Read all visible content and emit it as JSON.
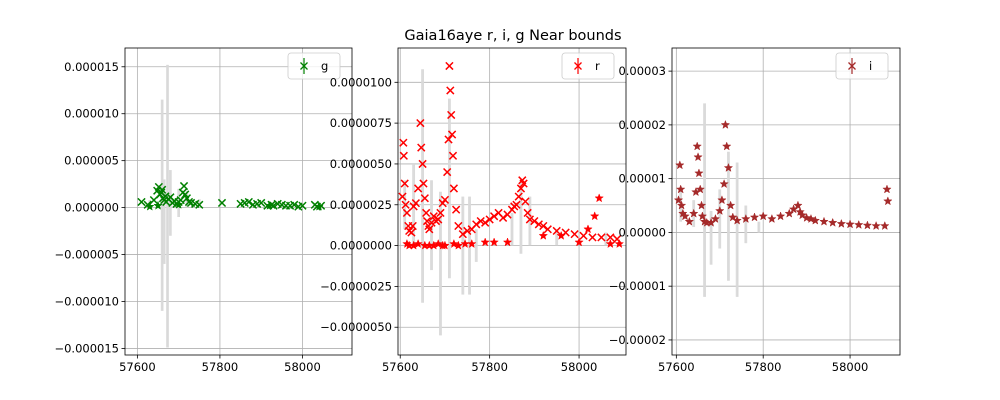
{
  "title": "Gaia16aye  r, i, g Near bounds",
  "chart_data": [
    {
      "type": "scatter",
      "band": "g",
      "legend": "g",
      "color": "#008000",
      "xlim": [
        57570,
        58120
      ],
      "ylim": [
        -1.57e-05,
        1.7e-05
      ],
      "xticks": [
        57600,
        57800,
        58000
      ],
      "xtick_labels": [
        "57600",
        "57800",
        "58000"
      ],
      "yticks": [
        -1.5e-05,
        -1e-05,
        -5e-06,
        0,
        5e-06,
        1e-05,
        1.5e-05
      ],
      "ytick_labels": [
        "−0.000015",
        "−0.000010",
        "−0.000005",
        "0.000000",
        "0.000005",
        "0.000010",
        "0.000015"
      ],
      "grid": true,
      "legend_loc": "upper right",
      "band_range": [
        [
          57630,
          4e-07,
          8e-07
        ],
        [
          57660,
          -1.1e-05,
          1.15e-05
        ],
        [
          57665,
          -6e-06,
          3e-06
        ],
        [
          57673,
          -1.49e-05,
          1.52e-05
        ],
        [
          57680,
          -3e-06,
          4e-06
        ],
        [
          57700,
          -1e-06,
          2e-06
        ],
        [
          57720,
          0,
          1.8e-06
        ],
        [
          57750,
          1e-07,
          9e-07
        ]
      ],
      "series": [
        {
          "marker": "x",
          "x": [
            57610,
            57625,
            57640,
            57648,
            57652,
            57655,
            57658,
            57660,
            57662,
            57665,
            57668,
            57670,
            57675,
            57680,
            57685,
            57690,
            57695,
            57700,
            57705,
            57710,
            57713,
            57716,
            57720,
            57725,
            57730,
            57740,
            57750,
            57805,
            57850,
            57860,
            57870,
            57880,
            57890,
            57900,
            57915,
            57925,
            57930,
            57940,
            57950,
            57960,
            57970,
            57980,
            57990,
            58000,
            58030,
            58035,
            58045
          ],
          "y": [
            6e-07,
            3e-07,
            8e-07,
            1.8e-06,
            2.2e-06,
            1.4e-06,
            1.6e-06,
            1.9e-06,
            1e-06,
            8e-07,
            1.2e-06,
            6e-07,
            9e-07,
            1.1e-06,
            5e-07,
            7e-07,
            4e-07,
            6e-07,
            8e-07,
            1.6e-06,
            2.3e-06,
            1.4e-06,
            1e-06,
            6e-07,
            5e-07,
            4e-07,
            3e-07,
            5e-07,
            4e-07,
            5e-07,
            6e-07,
            3e-07,
            4e-07,
            5e-07,
            2e-07,
            3e-07,
            2e-07,
            4e-07,
            3e-07,
            2e-07,
            2e-07,
            3e-07,
            1e-07,
            2e-07,
            3e-07,
            1e-07,
            2e-07
          ]
        },
        {
          "marker": "*",
          "x": [
            57630,
            57650,
            57700,
            57920,
            58040
          ],
          "y": [
            1e-07,
            2e-07,
            3e-07,
            2e-07,
            1e-07
          ]
        }
      ]
    },
    {
      "type": "scatter",
      "band": "r",
      "legend": "r",
      "color": "#ff0000",
      "xlim": [
        57595,
        58105
      ],
      "ylim": [
        -6.7e-06,
        1.21e-05
      ],
      "xticks": [
        57600,
        57800,
        58000
      ],
      "xtick_labels": [
        "57600",
        "57800",
        "58000"
      ],
      "yticks": [
        -5e-06,
        -2.5e-06,
        0,
        2.5e-06,
        5e-06,
        7.5e-06,
        1e-05
      ],
      "ytick_labels": [
        "−0.0000050",
        "−0.0000025",
        "0.0000000",
        "0.0000025",
        "0.0000050",
        "0.0000075",
        "0.0000100"
      ],
      "grid": true,
      "legend_loc": "upper right",
      "band_range": [
        [
          57610,
          1e-06,
          4e-06
        ],
        [
          57630,
          0,
          5e-06
        ],
        [
          57650,
          -3.5e-06,
          1.08e-05
        ],
        [
          57670,
          -1.5e-06,
          4e-06
        ],
        [
          57690,
          -5.5e-06,
          3.3e-06
        ],
        [
          57710,
          -2e-06,
          9e-06
        ],
        [
          57740,
          -3e-06,
          3e-06
        ],
        [
          57755,
          -3e-06,
          3e-06
        ],
        [
          57770,
          -1e-06,
          1e-06
        ],
        [
          57850,
          0,
          2e-06
        ],
        [
          57870,
          -5e-07,
          4e-06
        ],
        [
          57890,
          0,
          3e-06
        ],
        [
          57950,
          0,
          1e-06
        ],
        [
          58060,
          0,
          8e-07
        ]
      ],
      "series": [
        {
          "marker": "x",
          "x": [
            57605,
            57607,
            57608,
            57610,
            57612,
            57615,
            57618,
            57620,
            57625,
            57628,
            57630,
            57635,
            57640,
            57645,
            57647,
            57650,
            57652,
            57655,
            57658,
            57660,
            57663,
            57665,
            57670,
            57675,
            57680,
            57685,
            57690,
            57695,
            57700,
            57705,
            57708,
            57710,
            57712,
            57714,
            57716,
            57718,
            57720,
            57725,
            57730,
            57740,
            57750,
            57760,
            57770,
            57780,
            57790,
            57800,
            57810,
            57820,
            57830,
            57840,
            57850,
            57855,
            57860,
            57865,
            57870,
            57873,
            57876,
            57880,
            57885,
            57890,
            57900,
            57910,
            57920,
            57930,
            57950,
            57970,
            57990,
            58010,
            58030,
            58050,
            58070,
            58085
          ],
          "y": [
            3e-06,
            6.3e-06,
            5.5e-06,
            3.8e-06,
            2.5e-06,
            2e-06,
            1.2e-06,
            9e-07,
            8e-07,
            1.2e-06,
            2.4e-06,
            2.6e-06,
            3.5e-06,
            7.5e-06,
            6e-06,
            5e-06,
            3.8e-06,
            2.9e-06,
            2e-06,
            1.5e-06,
            1.2e-06,
            1e-06,
            1.4e-06,
            1.8e-06,
            1.5e-06,
            1.6e-06,
            2e-06,
            2.6e-06,
            2.8e-06,
            4.5e-06,
            6.5e-06,
            1.1e-05,
            9.5e-06,
            8e-06,
            6.8e-06,
            5.5e-06,
            3.5e-06,
            2.2e-06,
            1.2e-06,
            7e-07,
            9e-07,
            1e-06,
            1.3e-06,
            1.5e-06,
            1.4e-06,
            1.6e-06,
            1.8e-06,
            2e-06,
            1.7e-06,
            1.9e-06,
            2.2e-06,
            2.4e-06,
            2.5e-06,
            3e-06,
            3.5e-06,
            4e-06,
            3.8e-06,
            2.7e-06,
            2e-06,
            1.6e-06,
            1.5e-06,
            1.3e-06,
            1.2e-06,
            1e-06,
            9e-07,
            8e-07,
            7e-07,
            6e-07,
            5e-07,
            5e-07,
            5e-07,
            4e-07
          ]
        },
        {
          "marker": "*",
          "x": [
            57615,
            57620,
            57630,
            57640,
            57655,
            57665,
            57675,
            57685,
            57695,
            57700,
            57720,
            57730,
            57745,
            57760,
            57790,
            57810,
            57840,
            57920,
            57960,
            58000,
            58020,
            58035,
            58045,
            58070,
            58090
          ],
          "y": [
            1e-07,
            0,
            0,
            1e-07,
            0,
            0,
            0,
            1e-07,
            0,
            0,
            1e-07,
            0,
            1e-07,
            1e-07,
            2e-07,
            2e-07,
            2e-07,
            6e-07,
            6e-07,
            2e-07,
            1e-06,
            1.8e-06,
            2.9e-06,
            1e-07,
            1e-07
          ]
        }
      ]
    },
    {
      "type": "scatter",
      "band": "i",
      "legend": "i",
      "color": "#a52a2a",
      "xlim": [
        57590,
        58115
      ],
      "ylim": [
        -2.28e-05,
        3.43e-05
      ],
      "xticks": [
        57600,
        57800,
        58000
      ],
      "xtick_labels": [
        "57600",
        "57800",
        "58000"
      ],
      "yticks": [
        -2e-05,
        -1e-05,
        0,
        1e-05,
        2e-05,
        3e-05
      ],
      "ytick_labels": [
        "−0.00002",
        "−0.00001",
        "0.00000",
        "0.00001",
        "0.00002",
        "0.00003"
      ],
      "grid": true,
      "legend_loc": "upper right",
      "band_range": [
        [
          57610,
          2e-06,
          8e-06
        ],
        [
          57640,
          1e-06,
          6e-06
        ],
        [
          57665,
          -1.2e-05,
          2.4e-05
        ],
        [
          57680,
          -6e-06,
          4e-06
        ],
        [
          57700,
          -3e-06,
          8e-06
        ],
        [
          57720,
          -9e-06,
          1.5e-05
        ],
        [
          57740,
          -1.2e-05,
          1.3e-05
        ],
        [
          57760,
          -2e-06,
          5e-06
        ],
        [
          57790,
          0,
          2e-06
        ]
      ],
      "series": [
        {
          "marker": "*",
          "x": [
            57605,
            57608,
            57610,
            57612,
            57615,
            57620,
            57630,
            57640,
            57645,
            57648,
            57650,
            57652,
            57655,
            57658,
            57660,
            57665,
            57670,
            57680,
            57690,
            57700,
            57705,
            57710,
            57713,
            57716,
            57720,
            57725,
            57730,
            57740,
            57760,
            57780,
            57800,
            57820,
            57840,
            57860,
            57870,
            57880,
            57885,
            57890,
            57900,
            57910,
            57920,
            57940,
            57960,
            57980,
            58000,
            58020,
            58040,
            58060,
            58080,
            58085,
            58087
          ],
          "y": [
            6e-06,
            1.25e-05,
            8e-06,
            5e-06,
            3.5e-06,
            3e-06,
            2e-06,
            3.5e-06,
            7.5e-06,
            1.6e-05,
            1.4e-05,
            1.1e-05,
            8e-06,
            5e-06,
            3e-06,
            2e-06,
            1.8e-06,
            1.8e-06,
            2.5e-06,
            4e-06,
            6e-06,
            9e-06,
            2e-05,
            1.6e-05,
            1.2e-05,
            5e-06,
            2.8e-06,
            2.2e-06,
            2.5e-06,
            2.8e-06,
            3e-06,
            2.5e-06,
            3e-06,
            3.5e-06,
            4.3e-06,
            5e-06,
            3.8e-06,
            3.2e-06,
            2.7e-06,
            2.5e-06,
            2.2e-06,
            2e-06,
            1.8e-06,
            1.6e-06,
            1.5e-06,
            1.4e-06,
            1.3e-06,
            1.2e-06,
            1.2e-06,
            8e-06,
            5.8e-06
          ]
        }
      ]
    }
  ]
}
